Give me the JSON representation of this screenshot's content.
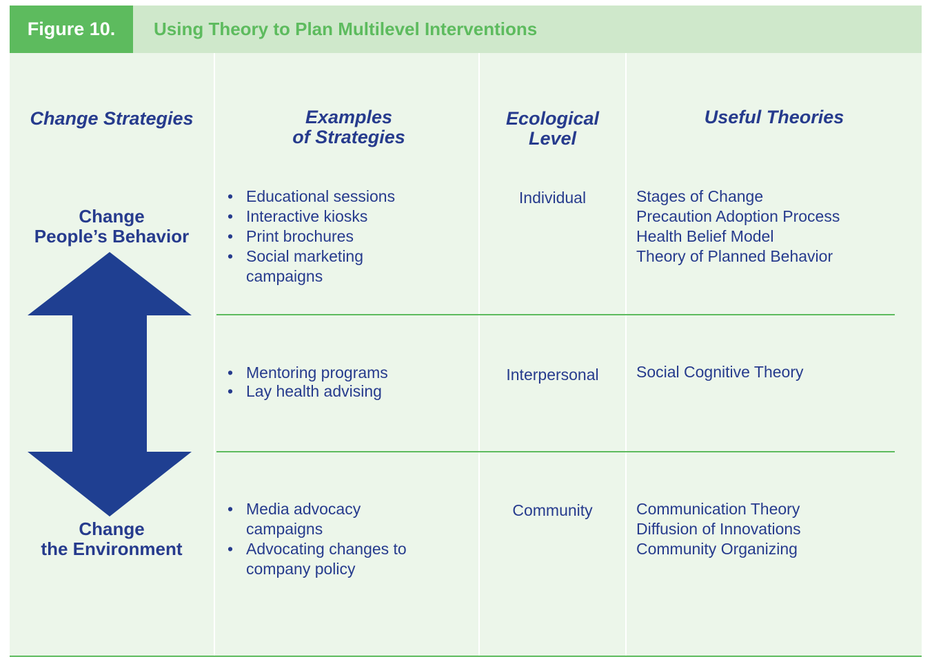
{
  "figure": {
    "label": "Figure 10.",
    "title": "Using Theory to Plan Multilevel Interventions"
  },
  "headers": {
    "change_strategies": "Change Strategies",
    "examples_line1": "Examples",
    "examples_line2": "of Strategies",
    "ecological_line1": "Ecological",
    "ecological_line2": "Level",
    "useful_theories": "Useful Theories"
  },
  "side_labels": {
    "top_line1": "Change",
    "top_line2": "People’s Behavior",
    "bottom_line1": "Change",
    "bottom_line2": "the Environment"
  },
  "rows": [
    {
      "level": "Individual",
      "strategies": [
        "Educational sessions",
        "Interactive kiosks",
        "Print brochures",
        "Social marketing campaigns"
      ],
      "theories": [
        "Stages of Change",
        "Precaution Adoption Process",
        "Health Belief Model",
        "Theory of Planned Behavior"
      ]
    },
    {
      "level": "Interpersonal",
      "strategies": [
        "Mentoring programs",
        "Lay health advising"
      ],
      "theories": [
        "Social Cognitive Theory"
      ]
    },
    {
      "level": "Community",
      "strategies": [
        "Media advocacy campaigns",
        "Advocating changes to company policy"
      ],
      "theories": [
        "Communication Theory",
        "Diffusion of Innovations",
        "Community Organizing"
      ]
    }
  ],
  "colors": {
    "label_green": "#5dbb5e",
    "title_bar": "#cfe8cb",
    "panel": "#ecf6ea",
    "text_blue": "#263b8d",
    "arrow_blue": "#1f3f91"
  },
  "icons": {
    "arrow": "double-headed-vertical-arrow"
  }
}
